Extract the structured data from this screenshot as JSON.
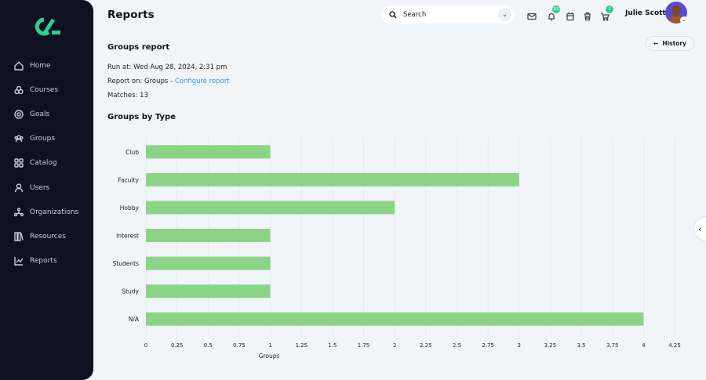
{
  "header": {
    "title": "Reports",
    "search_placeholder": "Search",
    "notification_count": "83",
    "cart_count": "1",
    "user_name": "Julie Scott",
    "history_label": "History"
  },
  "sidebar": {
    "items": [
      {
        "label": "Home",
        "icon": "home-icon"
      },
      {
        "label": "Courses",
        "icon": "courses-icon"
      },
      {
        "label": "Goals",
        "icon": "goals-icon"
      },
      {
        "label": "Groups",
        "icon": "groups-icon"
      },
      {
        "label": "Catalog",
        "icon": "catalog-icon"
      },
      {
        "label": "Users",
        "icon": "user-icon"
      },
      {
        "label": "Organizations",
        "icon": "organizations-icon"
      },
      {
        "label": "Resources",
        "icon": "resources-icon"
      },
      {
        "label": "Reports",
        "icon": "reports-icon"
      }
    ]
  },
  "report": {
    "heading": "Groups report",
    "run_at": "Run at: Wed Aug 28, 2024, 2:31 pm",
    "report_on": "Report on: Groups - ",
    "configure_link": "Configure report",
    "matches": "Matches: 13",
    "chart_heading": "Groups by Type"
  },
  "colors": {
    "bar": "#8cd485",
    "sidebar": "#0d1120",
    "accent": "#2ecf93",
    "link": "#2f9ad6"
  },
  "chart_data": {
    "type": "bar",
    "orientation": "horizontal",
    "categories": [
      "Club",
      "Faculty",
      "Hobby",
      "Interest",
      "Students",
      "Study",
      "N/A"
    ],
    "values": [
      1,
      3,
      2,
      1,
      1,
      1,
      4
    ],
    "xlabel": "Groups",
    "xlim": [
      0,
      4.25
    ],
    "xticks": [
      "0",
      "0.25",
      "0.5",
      "0.75",
      "1",
      "1.25",
      "1.5",
      "1.75",
      "2",
      "2.25",
      "2.5",
      "2.75",
      "3",
      "3.25",
      "3.5",
      "3.75",
      "4",
      "4.25"
    ],
    "grid": true
  }
}
